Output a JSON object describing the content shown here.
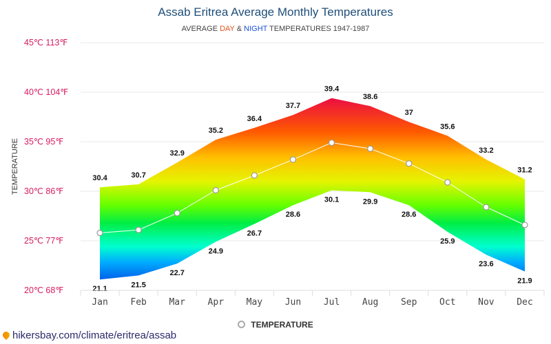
{
  "header": {
    "title": "Assab Eritrea Average Monthly Temperatures",
    "subtitle_prefix": "AVERAGE ",
    "subtitle_day": "DAY",
    "subtitle_amp": " & ",
    "subtitle_night": "NIGHT",
    "subtitle_suffix": " TEMPERATURES 1947-1987"
  },
  "legend": {
    "label": "TEMPERATURE"
  },
  "footer": {
    "url": "hikersbay.com/climate/eritrea/assab"
  },
  "colors": {
    "day": "#e0551b",
    "night": "#1a4fd6",
    "ytick": "#d81b60",
    "title": "#1f4e79"
  },
  "chart_data": {
    "type": "area",
    "ylabel": "TEMPERATURE",
    "ylim": [
      20,
      45
    ],
    "yticks": [
      {
        "value": 20,
        "label": "20℃ 68℉"
      },
      {
        "value": 25,
        "label": "25℃ 77℉"
      },
      {
        "value": 30,
        "label": "30℃ 86℉"
      },
      {
        "value": 35,
        "label": "35℃ 95℉"
      },
      {
        "value": 40,
        "label": "40℃ 104℉"
      },
      {
        "value": 45,
        "label": "45℃ 113℉"
      }
    ],
    "grid": true,
    "legend_position": "bottom",
    "categories": [
      "Jan",
      "Feb",
      "Mar",
      "Apr",
      "May",
      "Jun",
      "Jul",
      "Aug",
      "Sep",
      "Oct",
      "Nov",
      "Dec"
    ],
    "series": [
      {
        "values": [
          30.4,
          30.7,
          32.9,
          35.2,
          36.4,
          37.7,
          39.4,
          38.6,
          37,
          35.6,
          33.2,
          31.2
        ]
      },
      {
        "values": [
          21.1,
          21.5,
          22.7,
          24.9,
          26.7,
          28.6,
          30.1,
          29.9,
          28.6,
          25.9,
          23.6,
          21.9
        ]
      },
      {
        "name": "TEMPERATURE",
        "values": [
          25.8,
          26.1,
          27.8,
          30.1,
          31.6,
          33.2,
          34.9,
          34.3,
          32.8,
          30.9,
          28.4,
          26.6
        ]
      }
    ]
  }
}
